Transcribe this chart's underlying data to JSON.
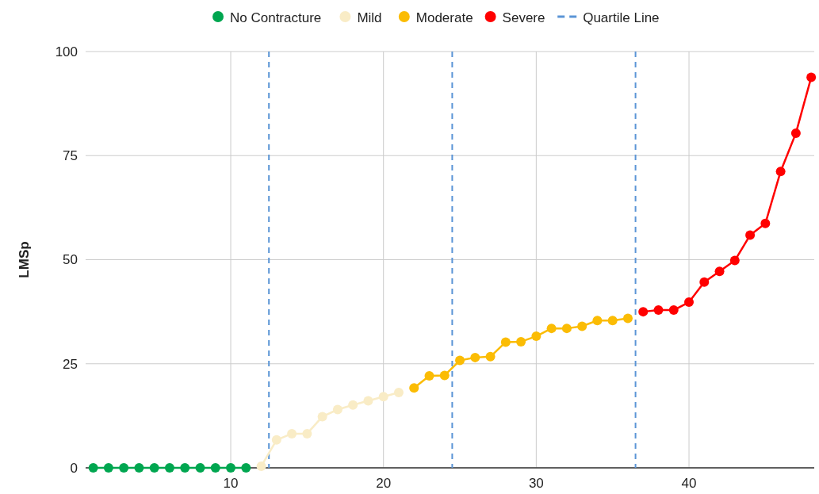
{
  "chart_data": {
    "type": "line",
    "ylabel": "LMSp",
    "xlim": [
      0.5,
      48.2
    ],
    "xticks": [
      10,
      20,
      30,
      40
    ],
    "ylim": [
      0,
      100
    ],
    "yticks": [
      0,
      25,
      50,
      75,
      100
    ],
    "grid": true,
    "legend": "top",
    "marker": "circle",
    "line_style": "solid",
    "series": [
      {
        "name": "No Contracture",
        "color": "#00a650",
        "x": [
          1,
          2,
          3,
          4,
          5,
          6,
          7,
          8,
          9,
          10,
          11
        ],
        "values": [
          0,
          0,
          0,
          0,
          0,
          0,
          0,
          0,
          0,
          0,
          0
        ]
      },
      {
        "name": "Mild",
        "color": "#f9ecc6",
        "x": [
          12,
          13,
          14,
          15,
          16,
          17,
          18,
          19,
          20,
          21
        ],
        "values": [
          0.4,
          6.7,
          8.2,
          8.2,
          12.3,
          14,
          15.1,
          16.1,
          17.1,
          18.1
        ]
      },
      {
        "name": "Moderate",
        "color": "#fbbc04",
        "x": [
          22,
          23,
          24,
          25,
          26,
          27,
          28,
          29,
          30,
          31,
          32,
          33,
          34,
          35,
          36
        ],
        "values": [
          19.2,
          22.1,
          22.2,
          25.8,
          26.5,
          26.7,
          30.2,
          30.3,
          31.6,
          33.5,
          33.5,
          34.0,
          35.4,
          35.4,
          35.9
        ]
      },
      {
        "name": "Severe",
        "color": "#ff0000",
        "x": [
          37,
          38,
          39,
          40,
          41,
          42,
          43,
          44,
          45,
          46,
          47,
          48
        ],
        "values": [
          37.5,
          37.9,
          37.9,
          39.8,
          44.6,
          47.2,
          49.8,
          55.9,
          58.7,
          71.2,
          80.4,
          93.8
        ]
      }
    ],
    "ref_lines": [
      {
        "axis": "x",
        "value": 12.5,
        "label": "Quartile Line",
        "color": "#5b95d6",
        "line_style": "dashed"
      },
      {
        "axis": "x",
        "value": 24.5,
        "color": "#5b95d6",
        "line_style": "dashed"
      },
      {
        "axis": "x",
        "value": 36.5,
        "color": "#5b95d6",
        "line_style": "dashed"
      }
    ]
  }
}
